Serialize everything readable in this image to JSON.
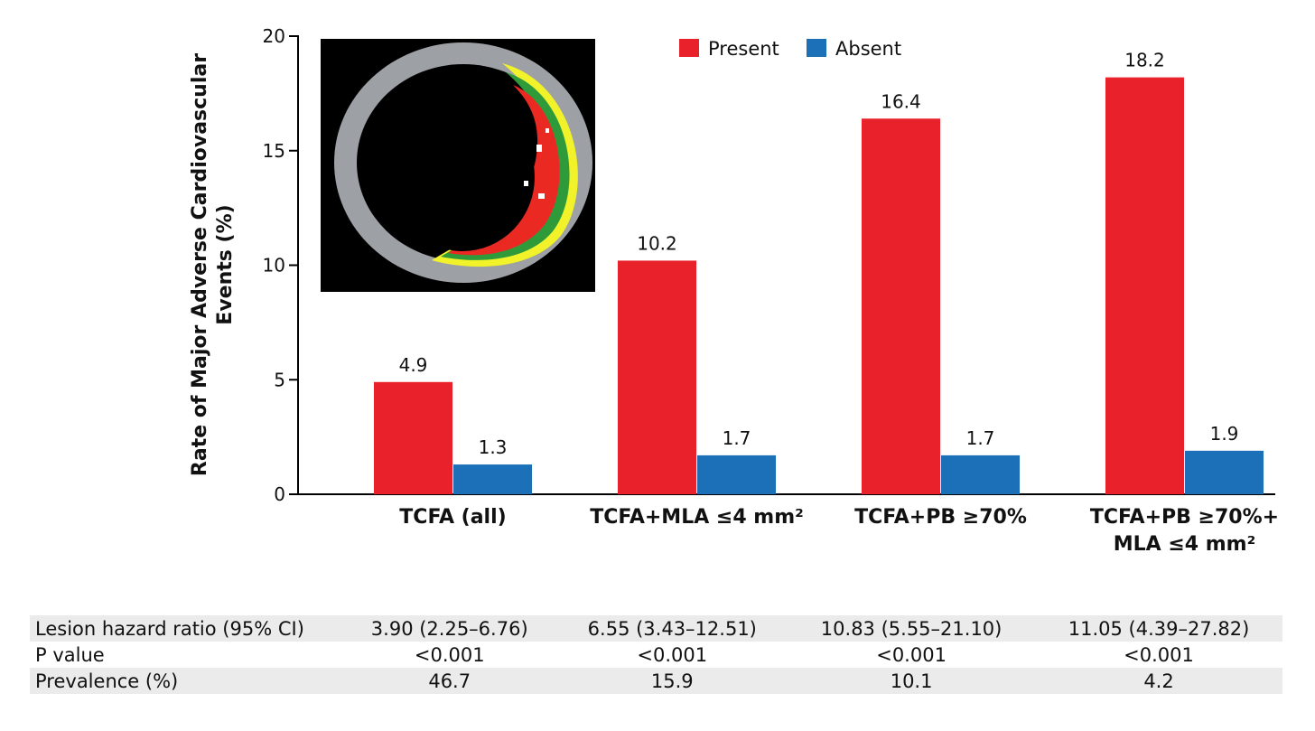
{
  "chart_data": {
    "type": "bar",
    "title": "",
    "xlabel": "",
    "ylabel": [
      "Rate of Major Adverse Cardiovascular",
      "Events (%)"
    ],
    "ylim": [
      0,
      20
    ],
    "yticks": [
      0,
      5,
      10,
      15,
      20
    ],
    "categories": [
      [
        "TCFA (all)"
      ],
      [
        "TCFA+MLA ≤4 mm²"
      ],
      [
        "TCFA+PB ≥70%"
      ],
      [
        "TCFA+PB ≥70%+",
        "MLA ≤4 mm²"
      ]
    ],
    "series": [
      {
        "name": "Present",
        "color": "#e8212a",
        "values": [
          4.9,
          10.2,
          16.4,
          18.2
        ],
        "labels": [
          "4.9",
          "10.2",
          "16.4",
          "18.2"
        ]
      },
      {
        "name": "Absent",
        "color": "#1c70b8",
        "values": [
          1.3,
          1.7,
          1.7,
          1.9
        ],
        "labels": [
          "1.3",
          "1.7",
          "1.7",
          "1.9"
        ]
      }
    ],
    "legend": "top-center",
    "grid": false
  },
  "stats_table": [
    {
      "label": "Lesion hazard ratio (95% CI)",
      "values": [
        "3.90 (2.25–6.76)",
        "6.55 (3.43–12.51)",
        "10.83 (5.55–21.10)",
        "11.05 (4.39–27.82)"
      ]
    },
    {
      "label": "P value",
      "values": [
        "<0.001",
        "<0.001",
        "<0.001",
        "<0.001"
      ]
    },
    {
      "label": "Prevalence (%)",
      "values": [
        "46.7",
        "15.9",
        "10.1",
        "4.2"
      ]
    }
  ]
}
